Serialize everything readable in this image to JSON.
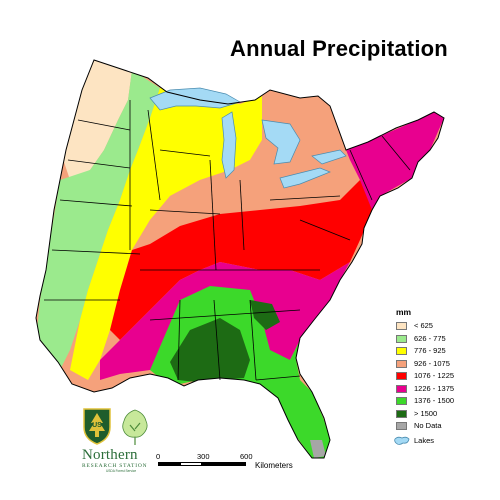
{
  "title": "Annual Precipitation",
  "legend": {
    "title": "mm",
    "items": [
      {
        "label": "< 625",
        "color": "#fde4c2"
      },
      {
        "label": "626 - 775",
        "color": "#9bea8d"
      },
      {
        "label": "776 - 925",
        "color": "#ffff00"
      },
      {
        "label": "926 - 1075",
        "color": "#f5a17b"
      },
      {
        "label": "1076 - 1225",
        "color": "#ff0000"
      },
      {
        "label": "1226 - 1375",
        "color": "#e8008f"
      },
      {
        "label": "1376 - 1500",
        "color": "#3cd92a"
      },
      {
        "label": "> 1500",
        "color": "#1d6b14"
      },
      {
        "label": "No Data",
        "color": "#a6a6a6"
      }
    ],
    "lakes_label": "Lakes",
    "lakes_color": "#a4daf5"
  },
  "scale_bar": {
    "ticks": [
      "0",
      "300",
      "600"
    ],
    "unit": "Kilometers"
  },
  "logo": {
    "shield_text": "US",
    "line1": "Northern",
    "line2": "RESEARCH STATION",
    "line3": "USDA Forest Service"
  }
}
